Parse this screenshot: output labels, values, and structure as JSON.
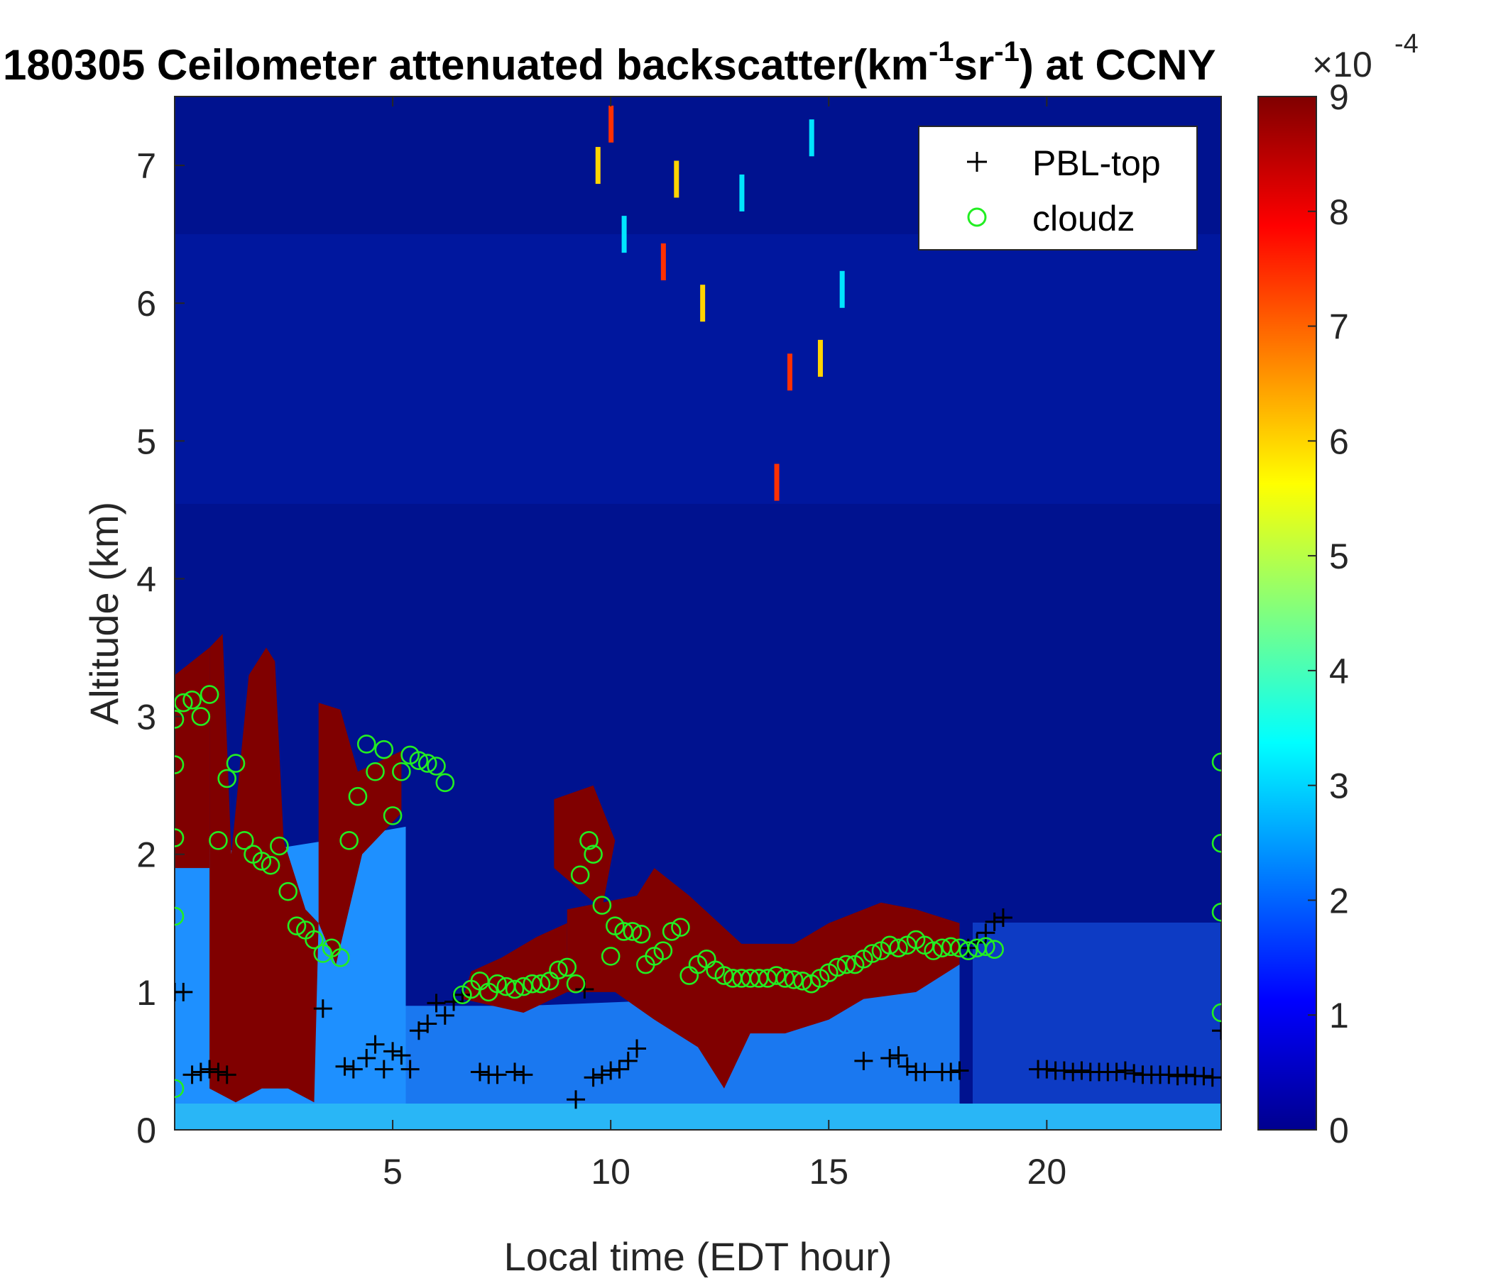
{
  "chart_data": {
    "type": "heatmap",
    "title": {
      "prefix": "180305 Ceilometer attenuated backscatter(km",
      "sup1": "-1",
      "middle": "sr",
      "sup2": "-1",
      "suffix": ") at CCNY"
    },
    "xlabel": "Local time (EDT hour)",
    "ylabel": "Altitude (km)",
    "xlim": [
      0,
      24
    ],
    "ylim": [
      0,
      7.5
    ],
    "xticks": [
      5,
      10,
      15,
      20
    ],
    "yticks": [
      0,
      1,
      2,
      3,
      4,
      5,
      6,
      7
    ],
    "colorbar": {
      "colormap": "jet",
      "range": [
        0,
        9
      ],
      "ticks": [
        0,
        1,
        2,
        3,
        4,
        5,
        6,
        7,
        8,
        9
      ],
      "exponent_base": "×10",
      "exponent_power": "-4"
    },
    "legend": {
      "position": "top-right",
      "entries": [
        {
          "label": "PBL-top",
          "marker": "+",
          "color": "#000000"
        },
        {
          "label": "cloudz",
          "marker": "o",
          "color": "#22ee22"
        }
      ]
    },
    "series": [
      {
        "name": "PBL-top",
        "marker": "+",
        "color": "#000000",
        "points": [
          [
            0.0,
            1.0
          ],
          [
            0.2,
            1.0
          ],
          [
            0.4,
            0.4
          ],
          [
            0.6,
            0.42
          ],
          [
            0.8,
            0.44
          ],
          [
            1.0,
            0.42
          ],
          [
            1.2,
            0.4
          ],
          [
            3.4,
            0.88
          ],
          [
            3.9,
            0.46
          ],
          [
            4.1,
            0.44
          ],
          [
            4.4,
            0.52
          ],
          [
            4.6,
            0.62
          ],
          [
            4.8,
            0.44
          ],
          [
            5.0,
            0.57
          ],
          [
            5.2,
            0.54
          ],
          [
            5.4,
            0.44
          ],
          [
            5.6,
            0.72
          ],
          [
            5.8,
            0.77
          ],
          [
            6.0,
            0.92
          ],
          [
            6.2,
            0.83
          ],
          [
            6.4,
            0.93
          ],
          [
            6.6,
            0.98
          ],
          [
            7.0,
            0.42
          ],
          [
            7.2,
            0.4
          ],
          [
            7.4,
            0.4
          ],
          [
            7.8,
            0.42
          ],
          [
            8.0,
            0.4
          ],
          [
            9.2,
            0.22
          ],
          [
            9.4,
            1.02
          ],
          [
            9.6,
            0.38
          ],
          [
            9.8,
            0.4
          ],
          [
            10.0,
            0.43
          ],
          [
            10.2,
            0.44
          ],
          [
            10.4,
            0.5
          ],
          [
            10.6,
            0.59
          ],
          [
            15.8,
            0.5
          ],
          [
            16.4,
            0.52
          ],
          [
            16.6,
            0.54
          ],
          [
            16.8,
            0.46
          ],
          [
            17.0,
            0.42
          ],
          [
            17.2,
            0.42
          ],
          [
            17.6,
            0.42
          ],
          [
            17.8,
            0.42
          ],
          [
            18.0,
            0.43
          ],
          [
            18.2,
            1.32
          ],
          [
            18.4,
            1.36
          ],
          [
            18.6,
            1.43
          ],
          [
            18.8,
            1.51
          ],
          [
            19.0,
            1.54
          ],
          [
            19.8,
            0.44
          ],
          [
            20.0,
            0.44
          ],
          [
            20.2,
            0.43
          ],
          [
            20.4,
            0.43
          ],
          [
            20.6,
            0.42
          ],
          [
            20.8,
            0.43
          ],
          [
            21.0,
            0.42
          ],
          [
            21.2,
            0.42
          ],
          [
            21.4,
            0.42
          ],
          [
            21.6,
            0.42
          ],
          [
            21.8,
            0.43
          ],
          [
            22.0,
            0.41
          ],
          [
            22.2,
            0.4
          ],
          [
            22.4,
            0.4
          ],
          [
            22.6,
            0.4
          ],
          [
            22.8,
            0.4
          ],
          [
            23.0,
            0.39
          ],
          [
            23.2,
            0.4
          ],
          [
            23.4,
            0.39
          ],
          [
            23.6,
            0.39
          ],
          [
            23.8,
            0.38
          ],
          [
            24.0,
            0.72
          ]
        ]
      },
      {
        "name": "cloudz",
        "marker": "o",
        "color": "#22ee22",
        "points": [
          [
            0.0,
            0.3
          ],
          [
            0.0,
            1.55
          ],
          [
            0.0,
            2.12
          ],
          [
            0.0,
            2.65
          ],
          [
            0.0,
            2.98
          ],
          [
            0.2,
            3.1
          ],
          [
            0.4,
            3.12
          ],
          [
            0.6,
            3.0
          ],
          [
            0.8,
            3.16
          ],
          [
            1.0,
            2.1
          ],
          [
            1.2,
            2.55
          ],
          [
            1.4,
            2.66
          ],
          [
            1.6,
            2.1
          ],
          [
            1.8,
            2.0
          ],
          [
            2.0,
            1.95
          ],
          [
            2.2,
            1.92
          ],
          [
            2.4,
            2.06
          ],
          [
            2.6,
            1.73
          ],
          [
            2.8,
            1.48
          ],
          [
            3.0,
            1.45
          ],
          [
            3.2,
            1.38
          ],
          [
            3.4,
            1.28
          ],
          [
            3.6,
            1.32
          ],
          [
            3.8,
            1.25
          ],
          [
            4.0,
            2.1
          ],
          [
            4.2,
            2.42
          ],
          [
            4.4,
            2.8
          ],
          [
            4.6,
            2.6
          ],
          [
            4.8,
            2.76
          ],
          [
            5.0,
            2.28
          ],
          [
            5.2,
            2.6
          ],
          [
            5.4,
            2.72
          ],
          [
            5.6,
            2.68
          ],
          [
            5.8,
            2.66
          ],
          [
            6.0,
            2.64
          ],
          [
            6.2,
            2.52
          ],
          [
            6.6,
            0.98
          ],
          [
            6.8,
            1.02
          ],
          [
            7.0,
            1.08
          ],
          [
            7.2,
            1.0
          ],
          [
            7.4,
            1.06
          ],
          [
            7.6,
            1.04
          ],
          [
            7.8,
            1.02
          ],
          [
            8.0,
            1.04
          ],
          [
            8.2,
            1.06
          ],
          [
            8.4,
            1.06
          ],
          [
            8.6,
            1.08
          ],
          [
            8.8,
            1.16
          ],
          [
            9.0,
            1.18
          ],
          [
            9.2,
            1.06
          ],
          [
            9.3,
            1.85
          ],
          [
            9.5,
            2.1
          ],
          [
            9.6,
            2.0
          ],
          [
            9.8,
            1.63
          ],
          [
            10.0,
            1.26
          ],
          [
            10.1,
            1.48
          ],
          [
            10.3,
            1.44
          ],
          [
            10.5,
            1.44
          ],
          [
            10.7,
            1.42
          ],
          [
            10.8,
            1.2
          ],
          [
            11.0,
            1.26
          ],
          [
            11.2,
            1.3
          ],
          [
            11.4,
            1.44
          ],
          [
            11.6,
            1.47
          ],
          [
            11.8,
            1.12
          ],
          [
            12.0,
            1.2
          ],
          [
            12.2,
            1.24
          ],
          [
            12.4,
            1.16
          ],
          [
            12.6,
            1.12
          ],
          [
            12.8,
            1.1
          ],
          [
            13.0,
            1.1
          ],
          [
            13.2,
            1.1
          ],
          [
            13.4,
            1.1
          ],
          [
            13.6,
            1.1
          ],
          [
            13.8,
            1.12
          ],
          [
            14.0,
            1.1
          ],
          [
            14.2,
            1.09
          ],
          [
            14.4,
            1.08
          ],
          [
            14.6,
            1.06
          ],
          [
            14.8,
            1.1
          ],
          [
            15.0,
            1.14
          ],
          [
            15.2,
            1.18
          ],
          [
            15.4,
            1.2
          ],
          [
            15.6,
            1.2
          ],
          [
            15.8,
            1.24
          ],
          [
            16.0,
            1.28
          ],
          [
            16.2,
            1.3
          ],
          [
            16.4,
            1.34
          ],
          [
            16.6,
            1.32
          ],
          [
            16.8,
            1.34
          ],
          [
            17.0,
            1.38
          ],
          [
            17.2,
            1.34
          ],
          [
            17.4,
            1.3
          ],
          [
            17.6,
            1.32
          ],
          [
            17.8,
            1.33
          ],
          [
            18.0,
            1.32
          ],
          [
            18.2,
            1.3
          ],
          [
            18.4,
            1.32
          ],
          [
            18.6,
            1.33
          ],
          [
            18.8,
            1.31
          ],
          [
            24.0,
            0.85
          ],
          [
            24.0,
            1.58
          ],
          [
            24.0,
            2.08
          ],
          [
            24.0,
            2.67
          ]
        ]
      }
    ]
  }
}
